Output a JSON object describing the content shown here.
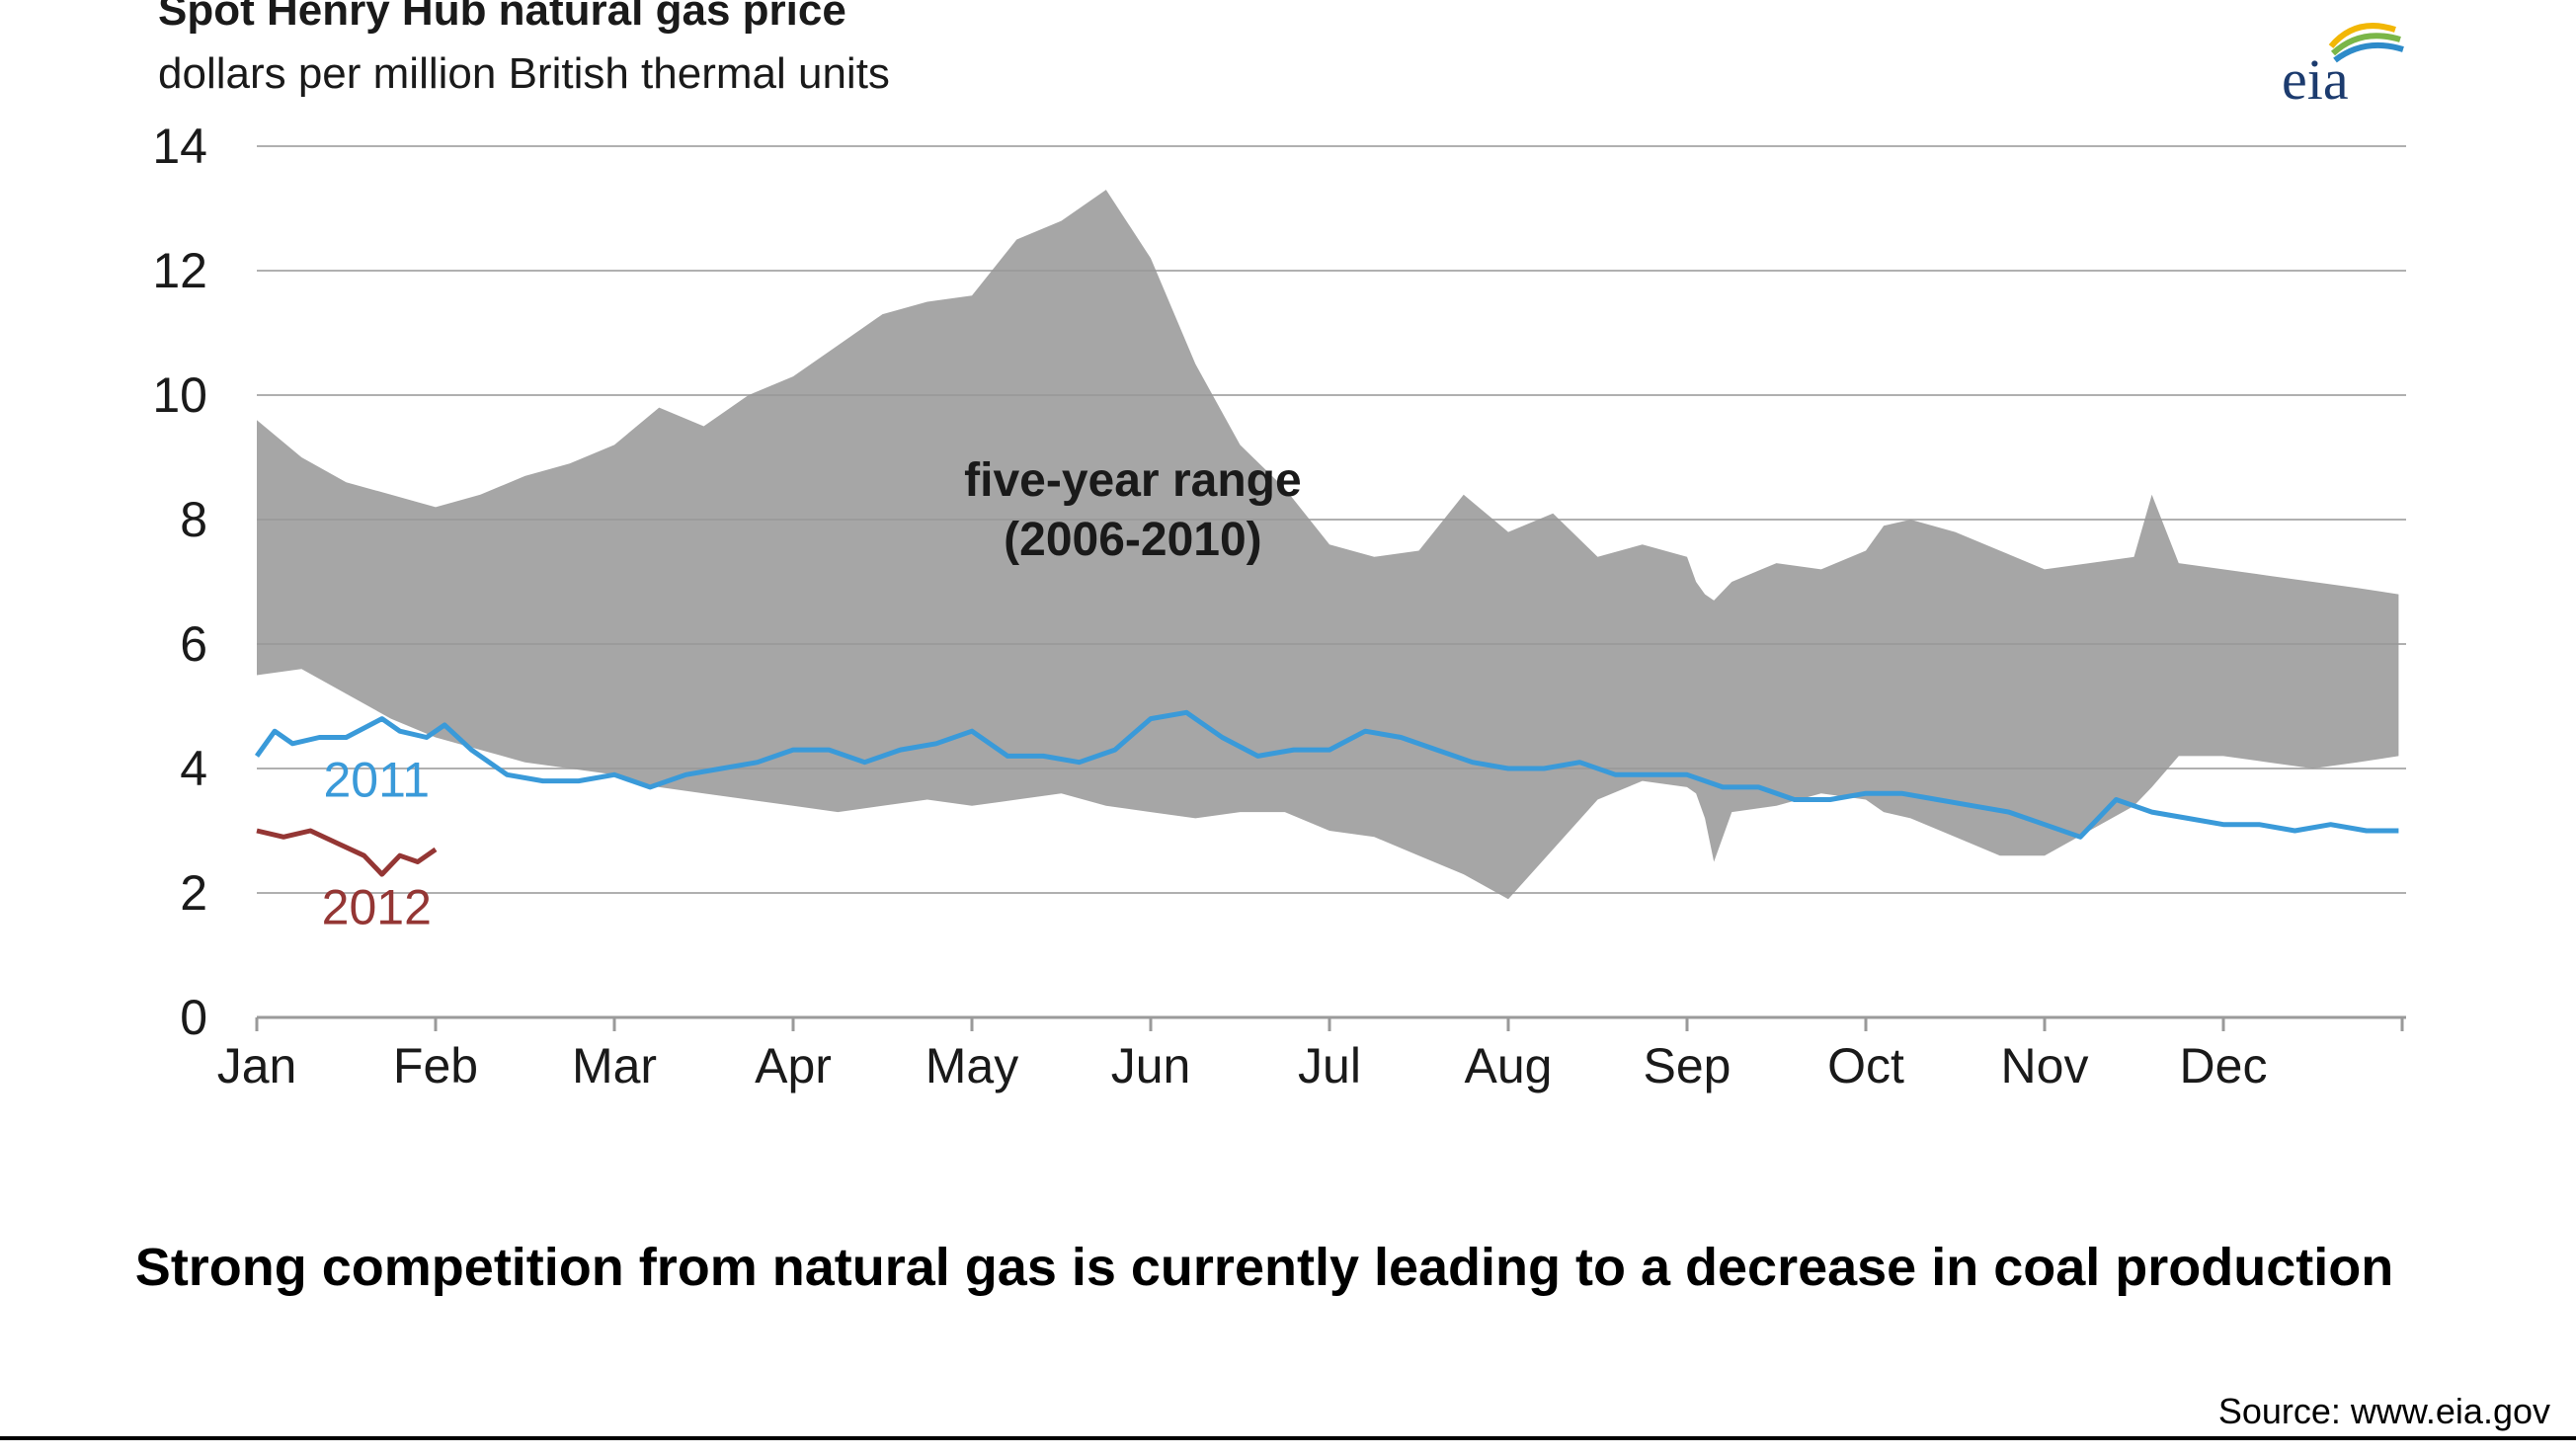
{
  "chart_data": {
    "type": "area",
    "title": "Spot Henry Hub natural gas price",
    "subtitle": "dollars per million British thermal units",
    "categories": [
      "Jan",
      "Feb",
      "Mar",
      "Apr",
      "May",
      "Jun",
      "Jul",
      "Aug",
      "Sep",
      "Oct",
      "Nov",
      "Dec"
    ],
    "ylim": [
      0,
      14
    ],
    "yticks": [
      "0",
      "2",
      "4",
      "6",
      "8",
      "10",
      "12",
      "14"
    ],
    "grid": true,
    "range_band": {
      "name": "five-year range",
      "period": "(2006-2010)",
      "color": "#a6a6a6",
      "x": [
        0,
        0.25,
        0.5,
        0.75,
        1,
        1.25,
        1.5,
        1.75,
        2,
        2.25,
        2.5,
        2.75,
        3,
        3.25,
        3.5,
        3.75,
        4,
        4.25,
        4.5,
        4.75,
        5,
        5.25,
        5.5,
        5.75,
        6,
        6.25,
        6.5,
        6.75,
        7,
        7.25,
        7.5,
        7.75,
        8,
        8.05,
        8.1,
        8.15,
        8.25,
        8.5,
        8.75,
        9,
        9.1,
        9.25,
        9.5,
        9.75,
        10,
        10.25,
        10.5,
        10.6,
        10.75,
        11,
        11.25,
        11.5,
        11.75,
        11.98
      ],
      "high": [
        9.6,
        9.0,
        8.6,
        8.4,
        8.2,
        8.4,
        8.7,
        8.9,
        9.2,
        9.8,
        9.5,
        10.0,
        10.3,
        10.8,
        11.3,
        11.5,
        11.6,
        12.5,
        12.8,
        13.3,
        12.2,
        10.5,
        9.2,
        8.5,
        7.6,
        7.4,
        7.5,
        8.4,
        7.8,
        8.1,
        7.4,
        7.6,
        7.4,
        7.0,
        6.8,
        6.7,
        7.0,
        7.3,
        7.2,
        7.5,
        7.9,
        8.0,
        7.8,
        7.5,
        7.2,
        7.3,
        7.4,
        8.4,
        7.3,
        7.2,
        7.1,
        7.0,
        6.9,
        6.8
      ],
      "low": [
        5.5,
        5.6,
        5.2,
        4.8,
        4.5,
        4.3,
        4.1,
        4.0,
        3.9,
        3.7,
        3.6,
        3.5,
        3.4,
        3.3,
        3.4,
        3.5,
        3.4,
        3.5,
        3.6,
        3.4,
        3.3,
        3.2,
        3.3,
        3.3,
        3.0,
        2.9,
        2.6,
        2.3,
        1.9,
        2.7,
        3.5,
        3.8,
        3.7,
        3.6,
        3.2,
        2.5,
        3.3,
        3.4,
        3.6,
        3.5,
        3.3,
        3.2,
        2.9,
        2.6,
        2.6,
        3.0,
        3.4,
        3.7,
        4.2,
        4.2,
        4.1,
        4.0,
        4.1,
        4.2
      ]
    },
    "series": [
      {
        "name": "2011",
        "color": "#3a9ad9",
        "x": [
          0,
          0.1,
          0.2,
          0.35,
          0.5,
          0.7,
          0.8,
          0.95,
          1,
          1.05,
          1.2,
          1.4,
          1.6,
          1.8,
          2,
          2.2,
          2.4,
          2.6,
          2.8,
          3,
          3.2,
          3.4,
          3.6,
          3.8,
          4,
          4.2,
          4.4,
          4.6,
          4.8,
          5,
          5.2,
          5.4,
          5.6,
          5.8,
          6,
          6.2,
          6.4,
          6.6,
          6.8,
          7,
          7.2,
          7.4,
          7.6,
          7.8,
          8,
          8.2,
          8.4,
          8.6,
          8.8,
          9,
          9.2,
          9.4,
          9.6,
          9.8,
          10,
          10.2,
          10.4,
          10.6,
          10.8,
          11,
          11.2,
          11.4,
          11.6,
          11.8,
          11.98
        ],
        "values": [
          4.2,
          4.6,
          4.4,
          4.5,
          4.5,
          4.8,
          4.6,
          4.5,
          4.6,
          4.7,
          4.3,
          3.9,
          3.8,
          3.8,
          3.9,
          3.7,
          3.9,
          4.0,
          4.1,
          4.3,
          4.3,
          4.1,
          4.3,
          4.4,
          4.6,
          4.2,
          4.2,
          4.1,
          4.3,
          4.8,
          4.9,
          4.5,
          4.2,
          4.3,
          4.3,
          4.6,
          4.5,
          4.3,
          4.1,
          4.0,
          4.0,
          4.1,
          3.9,
          3.9,
          3.9,
          3.7,
          3.7,
          3.5,
          3.5,
          3.6,
          3.6,
          3.5,
          3.4,
          3.3,
          3.1,
          2.9,
          3.5,
          3.3,
          3.2,
          3.1,
          3.1,
          3.0,
          3.1,
          3.0,
          3.0
        ]
      },
      {
        "name": "2012",
        "color": "#943634",
        "x": [
          0,
          0.15,
          0.3,
          0.45,
          0.6,
          0.7,
          0.8,
          0.9,
          1
        ],
        "values": [
          3.0,
          2.9,
          3.0,
          2.8,
          2.6,
          2.3,
          2.6,
          2.5,
          2.7
        ]
      }
    ]
  },
  "headline": "Strong competition from natural gas is currently leading to a decrease in coal production",
  "source": "Source: www.eia.gov",
  "logo_text": "eia"
}
